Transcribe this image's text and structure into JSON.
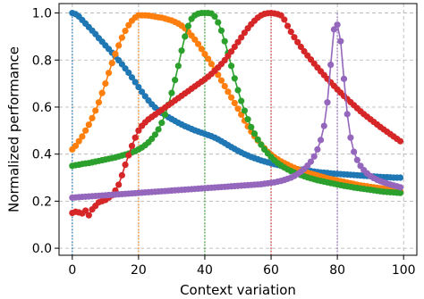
{
  "chart_data": {
    "type": "line",
    "title": "",
    "xlabel": "Context variation",
    "ylabel": "Normalized performance",
    "xlim": [
      -4,
      104
    ],
    "ylim": [
      -0.03,
      1.04
    ],
    "xticks": [
      0,
      20,
      40,
      60,
      80,
      100
    ],
    "yticks": [
      0.0,
      0.2,
      0.4,
      0.6,
      0.8,
      1.0
    ],
    "xtick_labels": [
      "0",
      "20",
      "40",
      "60",
      "80",
      "100"
    ],
    "ytick_labels": [
      "0.0",
      "0.2",
      "0.4",
      "0.6",
      "0.8",
      "1.0"
    ],
    "grid": true,
    "grid_style": "dashed",
    "markers": true,
    "x": [
      0,
      1,
      2,
      3,
      4,
      5,
      6,
      7,
      8,
      9,
      10,
      11,
      12,
      13,
      14,
      15,
      16,
      17,
      18,
      19,
      20,
      21,
      22,
      23,
      24,
      25,
      26,
      27,
      28,
      29,
      30,
      31,
      32,
      33,
      34,
      35,
      36,
      37,
      38,
      39,
      40,
      41,
      42,
      43,
      44,
      45,
      46,
      47,
      48,
      49,
      50,
      51,
      52,
      53,
      54,
      55,
      56,
      57,
      58,
      59,
      60,
      61,
      62,
      63,
      64,
      65,
      66,
      67,
      68,
      69,
      70,
      71,
      72,
      73,
      74,
      75,
      76,
      77,
      78,
      79,
      80,
      81,
      82,
      83,
      84,
      85,
      86,
      87,
      88,
      89,
      90,
      91,
      92,
      93,
      94,
      95,
      96,
      97,
      98,
      99
    ],
    "series": [
      {
        "color": "#1f77b4",
        "peak": 0,
        "values": [
          1.0,
          0.995,
          0.985,
          0.97,
          0.955,
          0.94,
          0.925,
          0.91,
          0.893,
          0.878,
          0.862,
          0.847,
          0.831,
          0.815,
          0.799,
          0.782,
          0.764,
          0.746,
          0.726,
          0.706,
          0.685,
          0.665,
          0.646,
          0.628,
          0.612,
          0.598,
          0.586,
          0.575,
          0.566,
          0.557,
          0.549,
          0.541,
          0.533,
          0.526,
          0.519,
          0.513,
          0.507,
          0.501,
          0.496,
          0.491,
          0.486,
          0.481,
          0.476,
          0.47,
          0.463,
          0.455,
          0.447,
          0.438,
          0.43,
          0.422,
          0.414,
          0.407,
          0.4,
          0.394,
          0.388,
          0.383,
          0.378,
          0.373,
          0.369,
          0.365,
          0.361,
          0.357,
          0.354,
          0.35,
          0.347,
          0.344,
          0.341,
          0.338,
          0.336,
          0.334,
          0.332,
          0.33,
          0.328,
          0.326,
          0.324,
          0.322,
          0.321,
          0.32,
          0.318,
          0.317,
          0.316,
          0.315,
          0.314,
          0.313,
          0.312,
          0.311,
          0.31,
          0.309,
          0.308,
          0.307,
          0.306,
          0.305,
          0.304,
          0.303,
          0.302,
          0.302,
          0.301,
          0.3,
          0.3,
          0.3
        ]
      },
      {
        "color": "#ff7f0e",
        "peak": 20,
        "values": [
          0.42,
          0.435,
          0.455,
          0.475,
          0.5,
          0.525,
          0.553,
          0.585,
          0.62,
          0.66,
          0.7,
          0.745,
          0.787,
          0.826,
          0.862,
          0.895,
          0.924,
          0.948,
          0.967,
          0.981,
          0.99,
          0.99,
          0.99,
          0.989,
          0.987,
          0.984,
          0.982,
          0.98,
          0.976,
          0.972,
          0.968,
          0.962,
          0.955,
          0.946,
          0.935,
          0.92,
          0.904,
          0.887,
          0.868,
          0.847,
          0.825,
          0.805,
          0.783,
          0.76,
          0.737,
          0.713,
          0.689,
          0.665,
          0.641,
          0.617,
          0.593,
          0.568,
          0.542,
          0.518,
          0.496,
          0.476,
          0.458,
          0.441,
          0.425,
          0.41,
          0.398,
          0.387,
          0.378,
          0.369,
          0.362,
          0.355,
          0.348,
          0.342,
          0.336,
          0.331,
          0.326,
          0.321,
          0.317,
          0.313,
          0.309,
          0.305,
          0.301,
          0.297,
          0.294,
          0.291,
          0.288,
          0.285,
          0.282,
          0.279,
          0.276,
          0.273,
          0.27,
          0.267,
          0.265,
          0.263,
          0.261,
          0.259,
          0.257,
          0.255,
          0.253,
          0.251,
          0.249,
          0.247,
          0.245,
          0.243
        ]
      },
      {
        "color": "#2ca02c",
        "peak": 40,
        "values": [
          0.35,
          0.353,
          0.355,
          0.358,
          0.36,
          0.362,
          0.365,
          0.368,
          0.371,
          0.374,
          0.377,
          0.38,
          0.383,
          0.386,
          0.39,
          0.394,
          0.398,
          0.402,
          0.407,
          0.413,
          0.42,
          0.428,
          0.438,
          0.45,
          0.465,
          0.483,
          0.505,
          0.533,
          0.568,
          0.61,
          0.66,
          0.715,
          0.775,
          0.84,
          0.9,
          0.945,
          0.975,
          0.99,
          0.997,
          1.0,
          1.0,
          1.0,
          0.998,
          0.985,
          0.96,
          0.925,
          0.88,
          0.83,
          0.775,
          0.722,
          0.672,
          0.626,
          0.585,
          0.548,
          0.515,
          0.487,
          0.462,
          0.44,
          0.42,
          0.403,
          0.388,
          0.374,
          0.362,
          0.352,
          0.343,
          0.335,
          0.328,
          0.322,
          0.316,
          0.311,
          0.306,
          0.301,
          0.297,
          0.293,
          0.289,
          0.286,
          0.283,
          0.28,
          0.277,
          0.274,
          0.271,
          0.268,
          0.265,
          0.263,
          0.261,
          0.258,
          0.256,
          0.254,
          0.252,
          0.25,
          0.248,
          0.246,
          0.244,
          0.242,
          0.24,
          0.239,
          0.238,
          0.237,
          0.236,
          0.235
        ]
      },
      {
        "color": "#d62728",
        "peak": 60,
        "values": [
          0.15,
          0.155,
          0.152,
          0.148,
          0.16,
          0.14,
          0.165,
          0.18,
          0.195,
          0.2,
          0.205,
          0.215,
          0.225,
          0.245,
          0.27,
          0.31,
          0.355,
          0.395,
          0.435,
          0.47,
          0.5,
          0.52,
          0.535,
          0.548,
          0.558,
          0.568,
          0.578,
          0.588,
          0.598,
          0.608,
          0.618,
          0.628,
          0.638,
          0.648,
          0.658,
          0.668,
          0.678,
          0.688,
          0.698,
          0.708,
          0.718,
          0.729,
          0.741,
          0.754,
          0.768,
          0.783,
          0.799,
          0.817,
          0.836,
          0.856,
          0.876,
          0.896,
          0.916,
          0.935,
          0.952,
          0.967,
          0.98,
          0.99,
          0.996,
          0.999,
          1.0,
          0.998,
          0.995,
          0.99,
          0.972,
          0.945,
          0.92,
          0.897,
          0.876,
          0.856,
          0.837,
          0.819,
          0.802,
          0.785,
          0.768,
          0.752,
          0.736,
          0.72,
          0.705,
          0.69,
          0.675,
          0.661,
          0.647,
          0.634,
          0.621,
          0.608,
          0.595,
          0.582,
          0.57,
          0.559,
          0.548,
          0.537,
          0.526,
          0.515,
          0.505,
          0.495,
          0.485,
          0.475,
          0.465,
          0.455
        ]
      },
      {
        "color": "#9467bd",
        "peak": 80,
        "values": [
          0.215,
          0.216,
          0.217,
          0.218,
          0.219,
          0.22,
          0.221,
          0.222,
          0.223,
          0.224,
          0.225,
          0.226,
          0.227,
          0.228,
          0.229,
          0.23,
          0.231,
          0.232,
          0.233,
          0.234,
          0.235,
          0.236,
          0.237,
          0.238,
          0.239,
          0.24,
          0.241,
          0.242,
          0.243,
          0.244,
          0.245,
          0.246,
          0.247,
          0.248,
          0.249,
          0.25,
          0.251,
          0.252,
          0.253,
          0.254,
          0.255,
          0.256,
          0.257,
          0.258,
          0.259,
          0.26,
          0.261,
          0.262,
          0.263,
          0.264,
          0.265,
          0.266,
          0.267,
          0.268,
          0.269,
          0.27,
          0.271,
          0.272,
          0.274,
          0.276,
          0.278,
          0.28,
          0.283,
          0.286,
          0.29,
          0.295,
          0.3,
          0.307,
          0.315,
          0.325,
          0.337,
          0.351,
          0.368,
          0.39,
          0.42,
          0.46,
          0.52,
          0.62,
          0.78,
          0.93,
          0.95,
          0.88,
          0.72,
          0.57,
          0.47,
          0.41,
          0.375,
          0.35,
          0.332,
          0.318,
          0.307,
          0.298,
          0.291,
          0.285,
          0.28,
          0.275,
          0.271,
          0.267,
          0.263,
          0.259
        ]
      }
    ]
  }
}
